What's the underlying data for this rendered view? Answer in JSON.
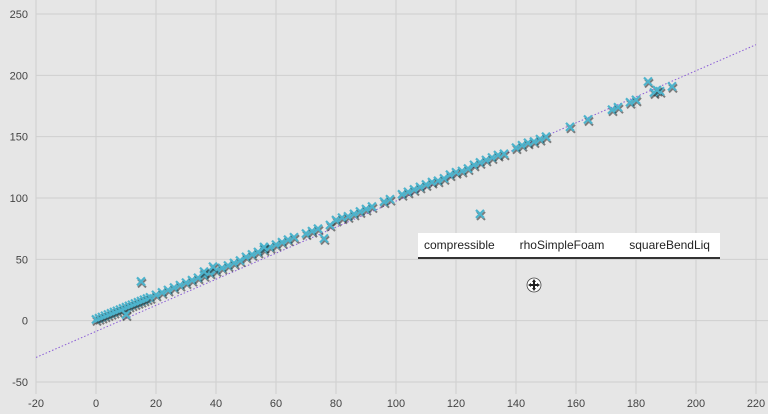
{
  "chart_data": {
    "type": "scatter",
    "title": "",
    "xlabel": "",
    "ylabel": "",
    "xlim": [
      -20,
      220
    ],
    "ylim": [
      -50,
      250
    ],
    "xticks": [
      -20,
      0,
      20,
      40,
      60,
      80,
      100,
      120,
      140,
      160,
      180,
      200,
      220
    ],
    "yticks": [
      -50,
      0,
      50,
      100,
      150,
      200,
      250
    ],
    "grid": true,
    "marker": "x",
    "colors": {
      "points": "#4db3cc",
      "shadow": "#222222",
      "reference_line": "#8a5cd6"
    },
    "reference_line": {
      "from": [
        -20,
        -30
      ],
      "to": [
        220,
        225
      ],
      "style": "dotted"
    },
    "series": [
      {
        "values_xy": [
          [
            0,
            1
          ],
          [
            1,
            2
          ],
          [
            2,
            3
          ],
          [
            3,
            4
          ],
          [
            4,
            5
          ],
          [
            5,
            6
          ],
          [
            6,
            7
          ],
          [
            7,
            8
          ],
          [
            8,
            9
          ],
          [
            9,
            10
          ],
          [
            10,
            11
          ],
          [
            11,
            12
          ],
          [
            12,
            13
          ],
          [
            13,
            14
          ],
          [
            14,
            15
          ],
          [
            15,
            16
          ],
          [
            16,
            17
          ],
          [
            17,
            18
          ],
          [
            18,
            19
          ],
          [
            20,
            21
          ],
          [
            22,
            23
          ],
          [
            24,
            25
          ],
          [
            26,
            27
          ],
          [
            28,
            29
          ],
          [
            30,
            31
          ],
          [
            32,
            33
          ],
          [
            34,
            35
          ],
          [
            36,
            37
          ],
          [
            38,
            39
          ],
          [
            40,
            41
          ],
          [
            42,
            43
          ],
          [
            44,
            45
          ],
          [
            46,
            47
          ],
          [
            48,
            49
          ],
          [
            50,
            52
          ],
          [
            52,
            54
          ],
          [
            54,
            56
          ],
          [
            56,
            58
          ],
          [
            58,
            60
          ],
          [
            60,
            62
          ],
          [
            62,
            64
          ],
          [
            64,
            66
          ],
          [
            66,
            68
          ],
          [
            70,
            71
          ],
          [
            72,
            73
          ],
          [
            74,
            75
          ],
          [
            78,
            78
          ],
          [
            80,
            82
          ],
          [
            82,
            84
          ],
          [
            84,
            85
          ],
          [
            86,
            87
          ],
          [
            88,
            89
          ],
          [
            90,
            91
          ],
          [
            92,
            93
          ],
          [
            96,
            97
          ],
          [
            98,
            99
          ],
          [
            102,
            103
          ],
          [
            104,
            105
          ],
          [
            106,
            107
          ],
          [
            108,
            109
          ],
          [
            110,
            111
          ],
          [
            112,
            113
          ],
          [
            114,
            114
          ],
          [
            116,
            116
          ],
          [
            118,
            119
          ],
          [
            120,
            121
          ],
          [
            122,
            122
          ],
          [
            124,
            124
          ],
          [
            126,
            127
          ],
          [
            128,
            129
          ],
          [
            130,
            131
          ],
          [
            132,
            133
          ],
          [
            134,
            135
          ],
          [
            136,
            136
          ],
          [
            140,
            141
          ],
          [
            142,
            143
          ],
          [
            144,
            145
          ],
          [
            146,
            146
          ],
          [
            148,
            148
          ],
          [
            150,
            150
          ],
          [
            158,
            158
          ],
          [
            164,
            164
          ],
          [
            172,
            172
          ],
          [
            174,
            174
          ],
          [
            178,
            178
          ],
          [
            180,
            180
          ],
          [
            186,
            186
          ],
          [
            188,
            187
          ],
          [
            192,
            191
          ],
          [
            15,
            32
          ],
          [
            39,
            44
          ],
          [
            76,
            67
          ],
          [
            128,
            87
          ],
          [
            184,
            195
          ],
          [
            187,
            188
          ],
          [
            10,
            5
          ],
          [
            36,
            40
          ],
          [
            56,
            60
          ]
        ]
      }
    ],
    "tooltip": {
      "category": "compressible",
      "solver": "rhoSimpleFoam",
      "case": "squareBendLiq"
    }
  }
}
